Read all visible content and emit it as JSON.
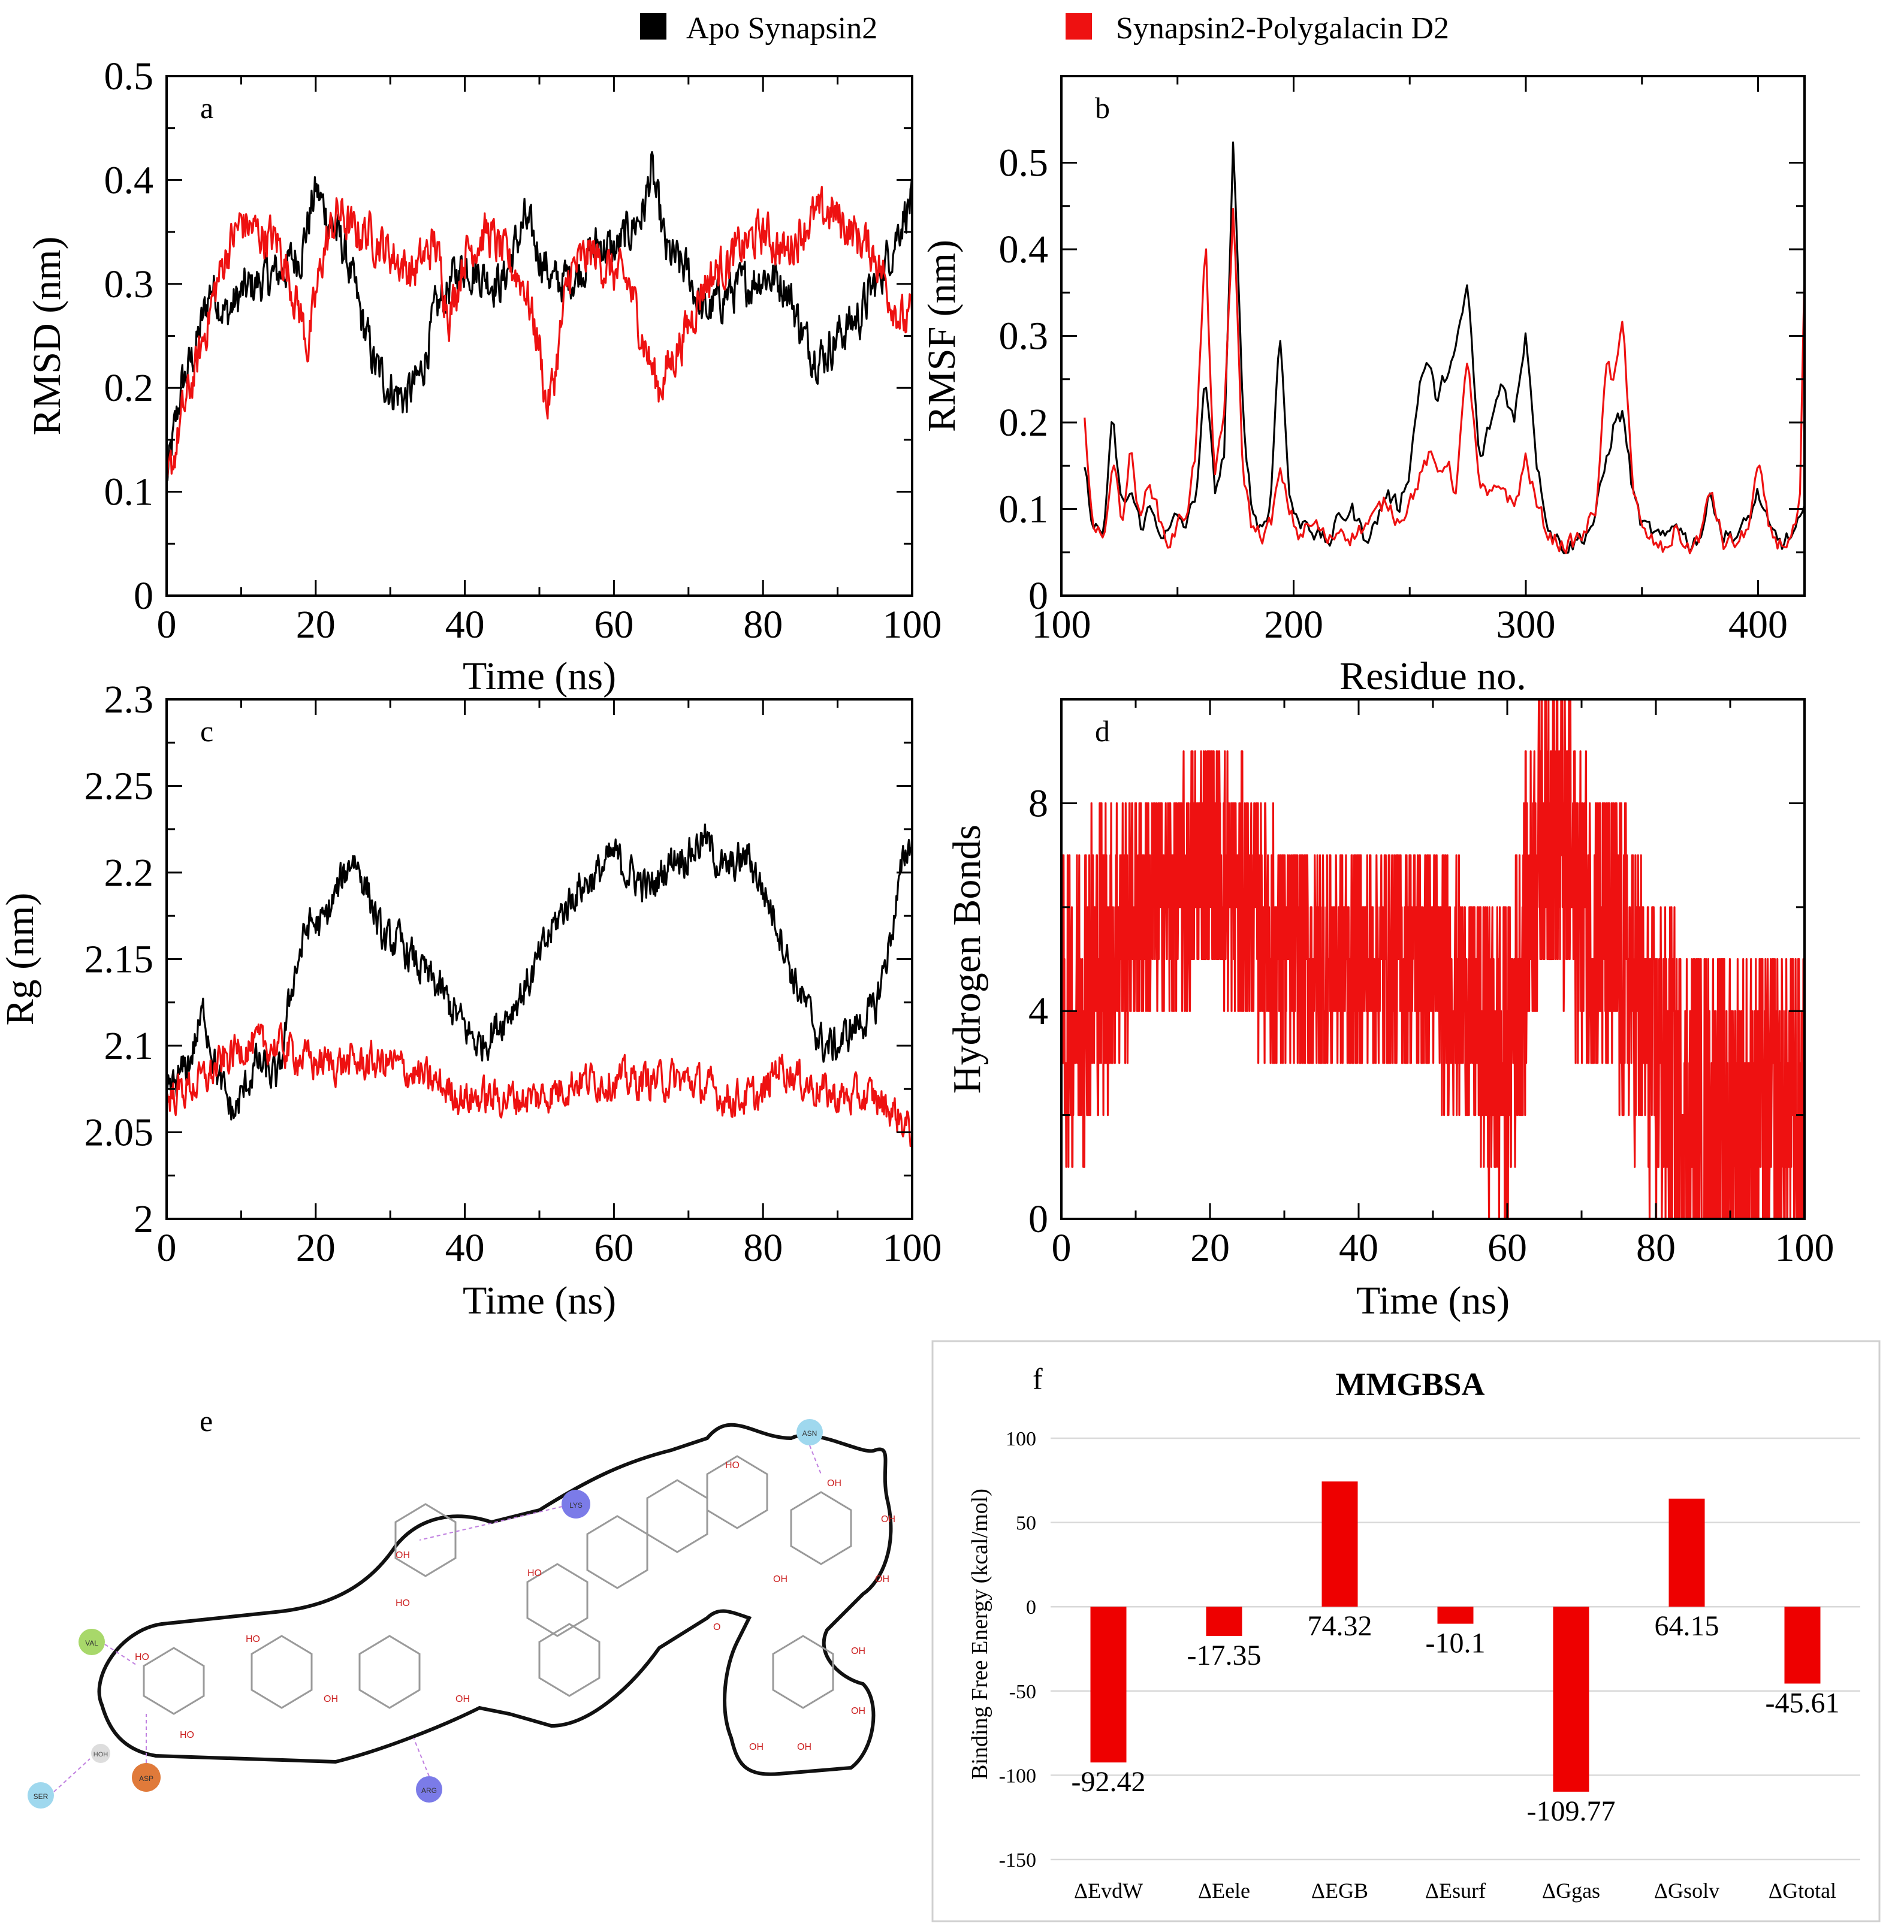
{
  "legend": {
    "items": [
      {
        "label": "Apo Synapsin2",
        "color": "#000000"
      },
      {
        "label": "Synapsin2-Polygalacin D2",
        "color": "#ee1111"
      }
    ]
  },
  "chart_data": [
    {
      "panel": "a",
      "type": "line",
      "xlabel": "Time (ns)",
      "ylabel": "RMSD (nm)",
      "xlim": [
        0,
        100
      ],
      "ylim": [
        0,
        0.5
      ],
      "xticks": [
        0,
        20,
        40,
        60,
        80,
        100
      ],
      "yticks": [
        0,
        0.1,
        0.2,
        0.3,
        0.4,
        0.5
      ],
      "noise": 0.018,
      "samples": 900,
      "series": [
        {
          "name": "Apo Synapsin2",
          "color": "#000000",
          "x": [
            0,
            2,
            4,
            6,
            8,
            10,
            12,
            15,
            18,
            20,
            22,
            24,
            26,
            28,
            30,
            32,
            34,
            36,
            38,
            40,
            42,
            45,
            48,
            50,
            52,
            55,
            58,
            60,
            62,
            64,
            65,
            67,
            70,
            72,
            75,
            78,
            80,
            83,
            86,
            88,
            90,
            93,
            95,
            97,
            99,
            100
          ],
          "y": [
            0.11,
            0.2,
            0.24,
            0.3,
            0.27,
            0.29,
            0.3,
            0.31,
            0.33,
            0.39,
            0.36,
            0.33,
            0.27,
            0.22,
            0.2,
            0.19,
            0.21,
            0.27,
            0.3,
            0.32,
            0.31,
            0.3,
            0.36,
            0.33,
            0.3,
            0.31,
            0.34,
            0.33,
            0.35,
            0.37,
            0.41,
            0.33,
            0.31,
            0.27,
            0.29,
            0.3,
            0.31,
            0.3,
            0.24,
            0.23,
            0.25,
            0.27,
            0.3,
            0.33,
            0.37,
            0.38
          ]
        },
        {
          "name": "Synapsin2-Polygalacin D2",
          "color": "#ee1111",
          "x": [
            0,
            2,
            4,
            6,
            8,
            10,
            12,
            15,
            18,
            19,
            21,
            23,
            25,
            27,
            30,
            33,
            36,
            38,
            40,
            43,
            45,
            48,
            50,
            51,
            52,
            54,
            57,
            60,
            62,
            65,
            66,
            68,
            70,
            72,
            75,
            78,
            80,
            83,
            86,
            89,
            92,
            95,
            97,
            99,
            100
          ],
          "y": [
            0.1,
            0.17,
            0.22,
            0.28,
            0.33,
            0.36,
            0.35,
            0.34,
            0.27,
            0.24,
            0.33,
            0.37,
            0.35,
            0.35,
            0.33,
            0.31,
            0.34,
            0.27,
            0.33,
            0.35,
            0.33,
            0.3,
            0.24,
            0.18,
            0.21,
            0.31,
            0.33,
            0.31,
            0.3,
            0.22,
            0.2,
            0.23,
            0.26,
            0.3,
            0.32,
            0.34,
            0.35,
            0.33,
            0.36,
            0.37,
            0.35,
            0.33,
            0.29,
            0.26,
            0.27
          ]
        }
      ]
    },
    {
      "panel": "b",
      "type": "line",
      "xlabel": "Residue no.",
      "ylabel": "RMSF (nm)",
      "xlim": [
        100,
        420
      ],
      "ylim": [
        0,
        0.6
      ],
      "xticks": [
        100,
        200,
        300,
        400
      ],
      "yticks": [
        0,
        0.1,
        0.2,
        0.3,
        0.4,
        0.5
      ],
      "noise": 0.01,
      "samples": 320,
      "series": [
        {
          "name": "Apo Synapsin2",
          "color": "#000000",
          "x": [
            110,
            114,
            118,
            122,
            126,
            130,
            134,
            138,
            142,
            146,
            150,
            154,
            158,
            162,
            166,
            170,
            174,
            178,
            182,
            186,
            190,
            194,
            198,
            202,
            206,
            210,
            215,
            220,
            225,
            230,
            235,
            240,
            245,
            250,
            255,
            258,
            262,
            266,
            270,
            275,
            280,
            285,
            290,
            295,
            300,
            305,
            310,
            315,
            320,
            325,
            330,
            335,
            338,
            342,
            346,
            350,
            355,
            360,
            365,
            370,
            375,
            380,
            385,
            390,
            395,
            400,
            405,
            410,
            415,
            420
          ],
          "y": [
            0.14,
            0.08,
            0.07,
            0.2,
            0.1,
            0.12,
            0.08,
            0.1,
            0.08,
            0.07,
            0.09,
            0.08,
            0.12,
            0.25,
            0.12,
            0.16,
            0.52,
            0.22,
            0.1,
            0.08,
            0.1,
            0.32,
            0.12,
            0.08,
            0.09,
            0.07,
            0.06,
            0.09,
            0.1,
            0.07,
            0.08,
            0.12,
            0.1,
            0.15,
            0.26,
            0.27,
            0.22,
            0.26,
            0.28,
            0.36,
            0.15,
            0.2,
            0.25,
            0.2,
            0.31,
            0.15,
            0.08,
            0.06,
            0.06,
            0.07,
            0.09,
            0.16,
            0.2,
            0.21,
            0.12,
            0.08,
            0.07,
            0.06,
            0.09,
            0.06,
            0.07,
            0.12,
            0.07,
            0.07,
            0.08,
            0.12,
            0.07,
            0.06,
            0.07,
            0.09
          ]
        },
        {
          "name": "Synapsin2-Polygalacin D2",
          "color": "#ee1111",
          "x": [
            110,
            114,
            118,
            122,
            126,
            130,
            134,
            138,
            142,
            146,
            150,
            154,
            158,
            162,
            166,
            170,
            174,
            178,
            182,
            186,
            190,
            194,
            198,
            202,
            206,
            210,
            215,
            220,
            225,
            230,
            235,
            240,
            245,
            250,
            255,
            258,
            262,
            266,
            270,
            275,
            280,
            285,
            290,
            295,
            300,
            305,
            310,
            315,
            320,
            325,
            330,
            335,
            338,
            342,
            346,
            350,
            355,
            360,
            365,
            370,
            375,
            380,
            385,
            390,
            395,
            400,
            405,
            410,
            415,
            418,
            420
          ],
          "y": [
            0.2,
            0.08,
            0.06,
            0.16,
            0.09,
            0.17,
            0.08,
            0.14,
            0.09,
            0.06,
            0.08,
            0.1,
            0.17,
            0.41,
            0.13,
            0.2,
            0.45,
            0.15,
            0.08,
            0.07,
            0.08,
            0.14,
            0.1,
            0.07,
            0.08,
            0.08,
            0.06,
            0.08,
            0.07,
            0.08,
            0.09,
            0.11,
            0.09,
            0.11,
            0.14,
            0.16,
            0.14,
            0.16,
            0.12,
            0.28,
            0.12,
            0.11,
            0.13,
            0.1,
            0.16,
            0.1,
            0.07,
            0.06,
            0.06,
            0.07,
            0.1,
            0.27,
            0.24,
            0.32,
            0.13,
            0.07,
            0.06,
            0.05,
            0.08,
            0.05,
            0.07,
            0.12,
            0.06,
            0.06,
            0.07,
            0.15,
            0.07,
            0.06,
            0.07,
            0.1,
            0.36
          ]
        }
      ]
    },
    {
      "panel": "c",
      "type": "line",
      "xlabel": "Time (ns)",
      "ylabel": "Rg (nm)",
      "xlim": [
        0,
        100
      ],
      "ylim": [
        2.0,
        2.3
      ],
      "xticks": [
        0,
        20,
        40,
        60,
        80,
        100
      ],
      "yticks": [
        2,
        2.05,
        2.1,
        2.15,
        2.2,
        2.25,
        2.3
      ],
      "ytick_labels": [
        "2",
        "2.05",
        "2.1",
        "2.15",
        "2.2",
        "2.25",
        "2.3"
      ],
      "noise": 0.009,
      "samples": 900,
      "series": [
        {
          "name": "Apo Synapsin2",
          "color": "#000000",
          "x": [
            0,
            3,
            5,
            7,
            9,
            12,
            15,
            17,
            19,
            21,
            23,
            25,
            27,
            29,
            31,
            33,
            35,
            37,
            40,
            42,
            44,
            46,
            49,
            52,
            55,
            58,
            60,
            62,
            65,
            68,
            70,
            72,
            75,
            78,
            80,
            82,
            84,
            86,
            88,
            90,
            92,
            95,
            97,
            99,
            100
          ],
          "y": [
            2.07,
            2.09,
            2.12,
            2.08,
            2.06,
            2.09,
            2.08,
            2.14,
            2.17,
            2.17,
            2.19,
            2.21,
            2.19,
            2.16,
            2.16,
            2.15,
            2.14,
            2.13,
            2.11,
            2.1,
            2.11,
            2.12,
            2.14,
            2.17,
            2.19,
            2.2,
            2.21,
            2.2,
            2.19,
            2.21,
            2.21,
            2.22,
            2.2,
            2.21,
            2.19,
            2.17,
            2.14,
            2.12,
            2.1,
            2.1,
            2.11,
            2.12,
            2.16,
            2.21,
            2.22
          ]
        },
        {
          "name": "Synapsin2-Polygalacin D2",
          "color": "#ee1111",
          "x": [
            0,
            5,
            10,
            15,
            20,
            25,
            30,
            35,
            40,
            45,
            50,
            55,
            60,
            65,
            70,
            75,
            80,
            82,
            85,
            90,
            95,
            98,
            100
          ],
          "y": [
            2.07,
            2.08,
            2.1,
            2.1,
            2.09,
            2.09,
            2.09,
            2.08,
            2.07,
            2.07,
            2.07,
            2.08,
            2.08,
            2.08,
            2.08,
            2.07,
            2.07,
            2.09,
            2.08,
            2.07,
            2.07,
            2.06,
            2.05
          ]
        }
      ]
    },
    {
      "panel": "d",
      "type": "line",
      "xlabel": "Time (ns)",
      "ylabel": "Hydrogen Bonds",
      "xlim": [
        0,
        100
      ],
      "ylim": [
        0,
        10
      ],
      "xticks": [
        0,
        20,
        40,
        60,
        80,
        100
      ],
      "yticks": [
        0,
        4,
        8
      ],
      "series": [
        {
          "name": "Synapsin2-Polygalacin D2",
          "color": "#ee1111",
          "x": [
            0,
            5,
            10,
            15,
            20,
            25,
            30,
            35,
            40,
            45,
            50,
            55,
            58,
            60,
            65,
            68,
            70,
            75,
            80,
            85,
            90,
            95,
            100
          ],
          "y": [
            4,
            5,
            6,
            6,
            7,
            6,
            5,
            5,
            5,
            5,
            5,
            4,
            3,
            3,
            8,
            7,
            6,
            5,
            3,
            2,
            2,
            2,
            2
          ],
          "spread": [
            2,
            2,
            1.5,
            1.5,
            1.5,
            1.5,
            1.5,
            1.5,
            1.5,
            1.5,
            1.5,
            1.5,
            2,
            2,
            2,
            2,
            2,
            2,
            2,
            2,
            2,
            2,
            2
          ]
        }
      ]
    },
    {
      "panel": "f",
      "type": "bar",
      "title": "MMGBSA",
      "ylabel": "Binding Free Energy (kcal/mol)",
      "ylim": [
        -150,
        100
      ],
      "yticks": [
        -150,
        -100,
        -50,
        0,
        50,
        100
      ],
      "categories": [
        "ΔEvdW",
        "ΔEele",
        "ΔEGB",
        "ΔEsurf",
        "ΔGgas",
        "ΔGsolv",
        "ΔGtotal"
      ],
      "values": [
        -92.42,
        -17.35,
        74.32,
        -10.1,
        -109.77,
        64.15,
        -45.61
      ],
      "color": "#ee0000"
    }
  ],
  "panels": {
    "a": "a",
    "b": "b",
    "c": "c",
    "d": "d",
    "e": "e",
    "f": "f"
  },
  "interaction_diagram": {
    "residues": [
      {
        "name": "LYS",
        "color": "#7b7be8"
      },
      {
        "name": "ASN",
        "color": "#9fd8ee"
      },
      {
        "name": "VAL",
        "color": "#a8d86a"
      },
      {
        "name": "ASP",
        "color": "#e07a3a"
      },
      {
        "name": "SER",
        "color": "#9fd8ee"
      },
      {
        "name": "ARG",
        "color": "#7b7be8"
      },
      {
        "name": "HOH",
        "color": "#cccccc"
      }
    ]
  }
}
